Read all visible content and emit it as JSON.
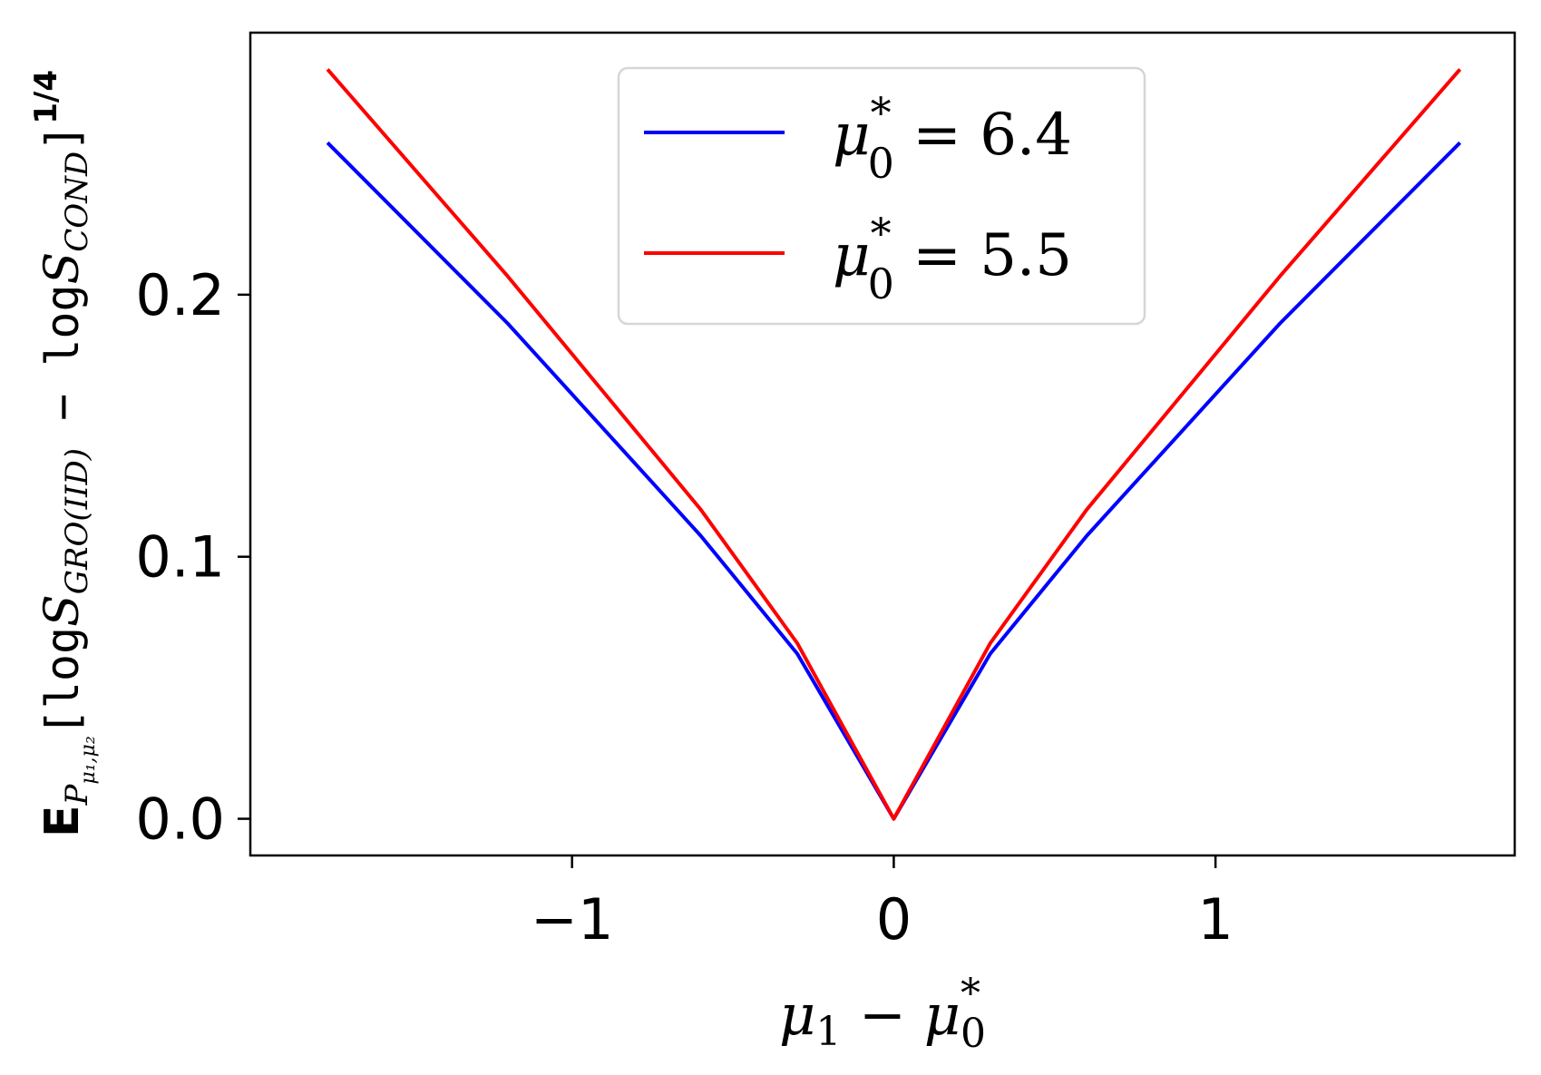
{
  "chart_data": {
    "type": "line",
    "xlabel": {
      "main": "μ",
      "sub1": "1",
      "op": " − ",
      "main2": "μ",
      "sup2": "*",
      "sub2": "0"
    },
    "ylabel": {
      "E": "E",
      "E_sub": "P",
      "E_subsub": "μ₁,μ₂",
      "open": "[",
      "log1": "log",
      "S1": "S",
      "S1_sub": "GRO(IID)",
      "minus": " − ",
      "log2": "log",
      "S2": "S",
      "S2_sub": "COND",
      "close": "]",
      "power": "1/4"
    },
    "xlim": [
      -2.0,
      1.93
    ],
    "ylim": [
      -0.014,
      0.3
    ],
    "xticks": [
      -1,
      0,
      1
    ],
    "xtick_labels": [
      "−1",
      "0",
      "1"
    ],
    "yticks": [
      0.0,
      0.1,
      0.2
    ],
    "ytick_labels": [
      "0.0",
      "0.1",
      "0.2"
    ],
    "legend_position": "top-center",
    "series": [
      {
        "name": "μ0* = 6.4",
        "legend": {
          "mu": "μ",
          "sup": "*",
          "sub": "0",
          "eq": " = 6.4"
        },
        "color": "#0000ff",
        "x": [
          -1.76,
          -1.2,
          -0.6,
          -0.3,
          0.0,
          0.3,
          0.6,
          1.2,
          1.76
        ],
        "y": [
          0.258,
          0.189,
          0.108,
          0.063,
          0.0,
          0.063,
          0.108,
          0.189,
          0.258
        ]
      },
      {
        "name": "μ0* = 5.5",
        "legend": {
          "mu": "μ",
          "sup": "*",
          "sub": "0",
          "eq": " = 5.5"
        },
        "color": "#ff0000",
        "x": [
          -1.76,
          -1.2,
          -0.6,
          -0.3,
          0.0,
          0.3,
          0.6,
          1.2,
          1.76
        ],
        "y": [
          0.286,
          0.207,
          0.118,
          0.067,
          0.0,
          0.067,
          0.118,
          0.207,
          0.286
        ]
      }
    ]
  }
}
